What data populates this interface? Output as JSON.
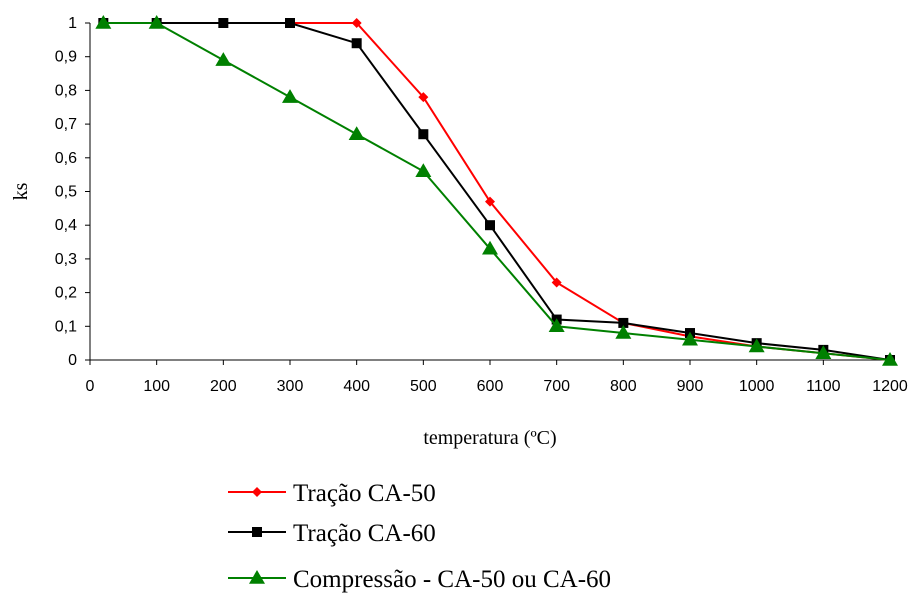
{
  "chart_data": {
    "type": "line",
    "title": "",
    "xlabel": "temperatura (ºC)",
    "ylabel": "ks",
    "x": [
      20,
      100,
      200,
      300,
      400,
      500,
      600,
      700,
      800,
      900,
      1000,
      1100,
      1200
    ],
    "x_ticks": [
      0,
      100,
      200,
      300,
      400,
      500,
      600,
      700,
      800,
      900,
      1000,
      1100,
      1200
    ],
    "x_tick_labels": [
      "0",
      "100",
      "200",
      "300",
      "400",
      "500",
      "600",
      "700",
      "800",
      "900",
      "1000",
      "1100",
      "1200"
    ],
    "xlim": [
      0,
      1200
    ],
    "y_ticks": [
      0,
      0.1,
      0.2,
      0.3,
      0.4,
      0.5,
      0.6,
      0.7,
      0.8,
      0.9,
      1
    ],
    "y_tick_labels": [
      "0",
      "0,1",
      "0,2",
      "0,3",
      "0,4",
      "0,5",
      "0,6",
      "0,7",
      "0,8",
      "0,9",
      "1"
    ],
    "ylim": [
      0,
      1
    ],
    "grid": false,
    "legend_position": "bottom",
    "series": [
      {
        "name": "Tração CA-50",
        "color": "#ff0000",
        "marker": "diamond",
        "values": [
          1,
          1,
          1,
          1,
          1,
          0.78,
          0.47,
          0.23,
          0.11,
          0.07,
          0.04,
          0.02,
          0
        ]
      },
      {
        "name": "Tração CA-60",
        "color": "#000000",
        "marker": "square",
        "values": [
          1,
          1,
          1,
          1,
          0.94,
          0.67,
          0.4,
          0.12,
          0.11,
          0.08,
          0.05,
          0.03,
          0
        ]
      },
      {
        "name": "Compressão - CA-50 ou CA-60",
        "color": "#008000",
        "marker": "triangle",
        "values": [
          1,
          1,
          0.89,
          0.78,
          0.67,
          0.56,
          0.33,
          0.1,
          0.08,
          0.06,
          0.04,
          0.02,
          0
        ]
      }
    ]
  }
}
